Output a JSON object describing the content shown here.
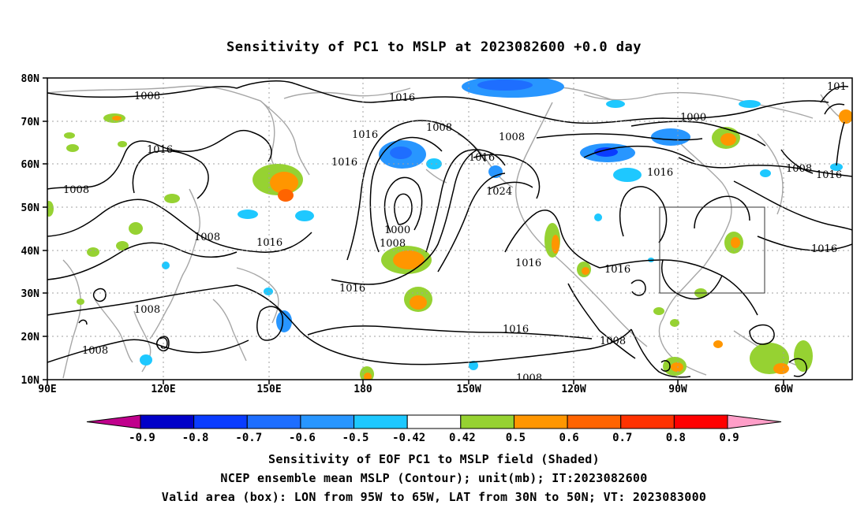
{
  "title": "Sensitivity of PC1 to MSLP at 2023082600 +0.0 day",
  "map": {
    "lon_ticks": [
      "90E",
      "120E",
      "150E",
      "180",
      "150W",
      "120W",
      "90W",
      "60W"
    ],
    "lat_ticks": [
      "80N",
      "70N",
      "60N",
      "50N",
      "40N",
      "30N",
      "20N",
      "10N"
    ],
    "extent": {
      "lon_min": 90,
      "lon_max": 310,
      "lat_min": 10,
      "lat_max": 80
    },
    "valid_box": {
      "lon_from": "95W",
      "lon_to": "65W",
      "lat_from": "30N",
      "lat_to": "50N"
    },
    "contour_labels": [
      "1008",
      "1016",
      "1016",
      "1008",
      "1008",
      "1008",
      "1016",
      "1008",
      "1016",
      "1008",
      "1008",
      "1000",
      "1016",
      "1024",
      "1016",
      "1016",
      "1016",
      "1008",
      "1000",
      "1016",
      "1008",
      "1016",
      "1016",
      "101",
      "1008"
    ],
    "colors": {
      "coast": "#a6a6a6",
      "contour": "#000000",
      "grid": "#a0a0a0"
    }
  },
  "colorbar": {
    "labels": [
      "-0.9",
      "-0.8",
      "-0.7",
      "-0.6",
      "-0.5",
      "-0.42",
      "0.42",
      "0.5",
      "0.6",
      "0.7",
      "0.8",
      "0.9"
    ],
    "colors": [
      "#c0008c",
      "#0000c8",
      "#0a3cff",
      "#1e6eff",
      "#2896ff",
      "#1ec8ff",
      "#ffffff",
      "#96d232",
      "#ff9600",
      "#ff6400",
      "#ff3200",
      "#ff0000",
      "#ff9ec8"
    ]
  },
  "caption": {
    "line1": "Sensitivity of EOF PC1 to MSLP field (Shaded)",
    "line2": "NCEP ensemble mean MSLP (Contour); unit(mb); IT:2023082600",
    "line3": "Valid area (box): LON from 95W to 65W, LAT from 30N to 50N; VT: 2023083000"
  }
}
